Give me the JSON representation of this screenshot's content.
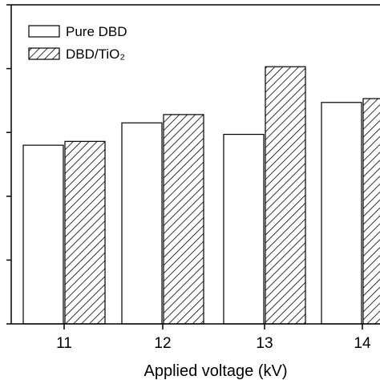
{
  "chart_data": {
    "type": "bar",
    "categories": [
      "11",
      "12",
      "13",
      "14"
    ],
    "series": [
      {
        "name": "Pure DBD",
        "values": [
          2.8,
          3.15,
          2.97,
          3.47
        ],
        "fill": "#ffffff"
      },
      {
        "name": "DBD/TiO₂",
        "values": [
          2.86,
          3.28,
          4.03,
          3.53
        ],
        "fill": "hatch"
      }
    ],
    "title": "",
    "xlabel": "Applied voltage (kV)",
    "ylabel": "",
    "ylim": [
      0,
      5
    ],
    "grid": false,
    "legend": "top-left",
    "colors": {
      "axis": "#000000",
      "bar_edge": "#000000",
      "hatch": "#000000",
      "background": "#ffffff"
    }
  }
}
